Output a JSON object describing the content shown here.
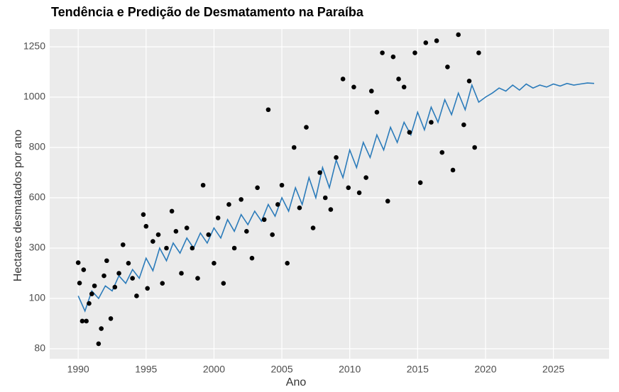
{
  "chart_data": {
    "type": "line",
    "title": "Tendência e Predição de Desmatamento na Paraíba",
    "x_label": "Ano",
    "y_label": "Hectares desmatados por ano",
    "xlim": [
      1987.9,
      2029.1
    ],
    "xticks": [
      1990,
      1995,
      2000,
      2005,
      2010,
      2015,
      2020,
      2025
    ],
    "ylim": [
      76,
      1338
    ],
    "yticks": [
      80,
      100,
      300,
      600,
      800,
      1000,
      1250
    ],
    "grid": true,
    "points": {
      "color": "#000000",
      "x": [
        1990,
        1990.1,
        1990.3,
        1990.4,
        1990.6,
        1990.8,
        1991,
        1991.2,
        1991.5,
        1991.7,
        1991.9,
        1992.1,
        1992.4,
        1992.7,
        1993,
        1993.3,
        1993.7,
        1994,
        1994.3,
        1994.8,
        1995,
        1995.1,
        1995.5,
        1995.9,
        1996.2,
        1996.5,
        1996.9,
        1997.2,
        1997.6,
        1998,
        1998.4,
        1998.8,
        1999.2,
        1999.6,
        2000,
        2000.3,
        2000.7,
        2001.1,
        2001.5,
        2002,
        2002.4,
        2002.8,
        2003.2,
        2003.7,
        2004,
        2004.3,
        2004.7,
        2005,
        2005.4,
        2005.9,
        2006.3,
        2006.8,
        2007.3,
        2007.8,
        2008.2,
        2008.6,
        2009,
        2009.5,
        2009.9,
        2010.3,
        2010.7,
        2011.2,
        2011.6,
        2012,
        2012.4,
        2012.8,
        2013.2,
        2013.6,
        2014,
        2014.4,
        2014.8,
        2015.2,
        2015.6,
        2016,
        2016.4,
        2016.8,
        2017.2,
        2017.6,
        2018,
        2018.4,
        2018.8,
        2019.2,
        2019.5
      ],
      "values": [
        242,
        161,
        91,
        214,
        91,
        98,
        118,
        150,
        82,
        88,
        190,
        250,
        92,
        145,
        200,
        320,
        240,
        180,
        110,
        500,
        430,
        140,
        340,
        380,
        160,
        300,
        520,
        400,
        200,
        420,
        300,
        180,
        650,
        380,
        240,
        480,
        160,
        560,
        300,
        590,
        400,
        260,
        640,
        470,
        950,
        380,
        560,
        650,
        240,
        800,
        540,
        880,
        420,
        700,
        600,
        530,
        760,
        1090,
        640,
        1050,
        620,
        680,
        1030,
        940,
        1220,
        580,
        1200,
        1090,
        1050,
        860,
        1220,
        660,
        1270,
        900,
        1280,
        780,
        1150,
        710,
        1310,
        890,
        1080,
        800,
        1220
      ]
    },
    "trend": {
      "color": "#2b7bba",
      "x": [
        1990,
        1990.5,
        1991,
        1991.5,
        1992,
        1992.5,
        1993,
        1993.5,
        1994,
        1994.5,
        1995,
        1995.5,
        1996,
        1996.5,
        1997,
        1997.5,
        1998,
        1998.5,
        1999,
        1999.5,
        2000,
        2000.5,
        2001,
        2001.5,
        2002,
        2002.5,
        2003,
        2003.5,
        2004,
        2004.5,
        2005,
        2005.5,
        2006,
        2006.5,
        2007,
        2007.5,
        2008,
        2008.5,
        2009,
        2009.5,
        2010,
        2010.5,
        2011,
        2011.5,
        2012,
        2012.5,
        2013,
        2013.5,
        2014,
        2014.5,
        2015,
        2015.5,
        2016,
        2016.5,
        2017,
        2017.5,
        2018,
        2018.5,
        2019,
        2019.5,
        2020,
        2020.5,
        2021,
        2021.5,
        2022,
        2022.5,
        2023,
        2023.5,
        2024,
        2024.5,
        2025,
        2025.5,
        2026,
        2026.5,
        2027,
        2027.5,
        2028
      ],
      "values": [
        110,
        95,
        130,
        100,
        150,
        130,
        190,
        160,
        215,
        180,
        260,
        210,
        300,
        250,
        330,
        280,
        360,
        300,
        390,
        330,
        420,
        360,
        470,
        400,
        500,
        440,
        520,
        460,
        560,
        490,
        600,
        520,
        640,
        560,
        680,
        600,
        720,
        640,
        750,
        680,
        790,
        720,
        820,
        760,
        850,
        790,
        880,
        820,
        900,
        850,
        940,
        870,
        960,
        900,
        990,
        930,
        1020,
        950,
        1060,
        980,
        1000,
        1020,
        1045,
        1030,
        1060,
        1035,
        1065,
        1045,
        1060,
        1050,
        1065,
        1055,
        1068,
        1060,
        1065,
        1070,
        1068
      ]
    }
  }
}
